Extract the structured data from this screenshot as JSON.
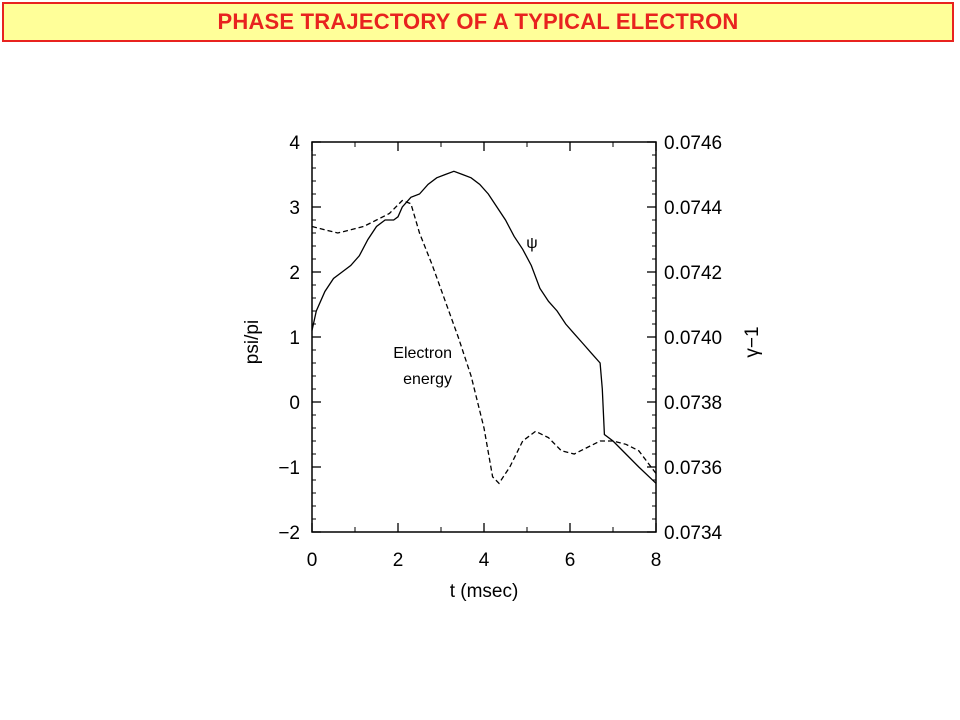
{
  "header": {
    "title": "PHASE TRAJECTORY OF A TYPICAL ELECTRON"
  },
  "colors": {
    "title_text": "#e8231f",
    "title_border": "#e8231f",
    "title_background": "#ffff99"
  },
  "chart_data": {
    "type": "line",
    "xlabel": "t (msec)",
    "ylabel_left": "psi/pi",
    "ylabel_right": "γ−1",
    "xlim": [
      0,
      8
    ],
    "ylim_left": [
      -2,
      4
    ],
    "ylim_right": [
      0.0734,
      0.0746
    ],
    "x_ticks": [
      "0",
      "2",
      "4",
      "6",
      "8"
    ],
    "y_ticks_left": [
      "−2",
      "−1",
      "0",
      "1",
      "2",
      "3",
      "4"
    ],
    "y_ticks_right": [
      "0.0734",
      "0.0736",
      "0.0738",
      "0.0740",
      "0.0742",
      "0.0744",
      "0.0746"
    ],
    "grid": false,
    "annotations": {
      "psi_label": "ψ",
      "energy_label_line1": "Electron",
      "energy_label_line2": "energy"
    },
    "series": [
      {
        "axis": "left",
        "style": "solid",
        "points": [
          [
            0,
            1.1
          ],
          [
            0.1,
            1.4
          ],
          [
            0.3,
            1.7
          ],
          [
            0.5,
            1.9
          ],
          [
            0.7,
            2.0
          ],
          [
            0.9,
            2.1
          ],
          [
            1.1,
            2.25
          ],
          [
            1.3,
            2.5
          ],
          [
            1.5,
            2.7
          ],
          [
            1.7,
            2.8
          ],
          [
            1.9,
            2.8
          ],
          [
            2.0,
            2.85
          ],
          [
            2.1,
            3.0
          ],
          [
            2.3,
            3.15
          ],
          [
            2.5,
            3.2
          ],
          [
            2.7,
            3.35
          ],
          [
            2.9,
            3.45
          ],
          [
            3.1,
            3.5
          ],
          [
            3.3,
            3.55
          ],
          [
            3.5,
            3.5
          ],
          [
            3.7,
            3.45
          ],
          [
            3.9,
            3.35
          ],
          [
            4.1,
            3.2
          ],
          [
            4.3,
            3.0
          ],
          [
            4.5,
            2.8
          ],
          [
            4.7,
            2.55
          ],
          [
            4.9,
            2.35
          ],
          [
            5.1,
            2.1
          ],
          [
            5.3,
            1.75
          ],
          [
            5.5,
            1.55
          ],
          [
            5.7,
            1.4
          ],
          [
            5.9,
            1.2
          ],
          [
            6.1,
            1.05
          ],
          [
            6.3,
            0.9
          ],
          [
            6.5,
            0.75
          ],
          [
            6.7,
            0.6
          ],
          [
            6.75,
            0.2
          ],
          [
            6.8,
            -0.5
          ],
          [
            7.0,
            -0.6
          ],
          [
            7.3,
            -0.8
          ],
          [
            7.6,
            -1.0
          ],
          [
            8.0,
            -1.25
          ]
        ]
      },
      {
        "axis": "right",
        "style": "dashed",
        "points": [
          [
            0,
            0.07434
          ],
          [
            0.3,
            0.07433
          ],
          [
            0.6,
            0.07432
          ],
          [
            0.9,
            0.07433
          ],
          [
            1.2,
            0.07434
          ],
          [
            1.5,
            0.07436
          ],
          [
            1.8,
            0.07438
          ],
          [
            2.1,
            0.07442
          ],
          [
            2.3,
            0.07441
          ],
          [
            2.5,
            0.07432
          ],
          [
            2.8,
            0.07422
          ],
          [
            3.1,
            0.07411
          ],
          [
            3.4,
            0.074
          ],
          [
            3.7,
            0.07388
          ],
          [
            4.0,
            0.07372
          ],
          [
            4.2,
            0.07357
          ],
          [
            4.35,
            0.07355
          ],
          [
            4.6,
            0.0736
          ],
          [
            4.9,
            0.07368
          ],
          [
            5.2,
            0.07371
          ],
          [
            5.5,
            0.07369
          ],
          [
            5.8,
            0.07365
          ],
          [
            6.1,
            0.07364
          ],
          [
            6.4,
            0.07366
          ],
          [
            6.7,
            0.07368
          ],
          [
            7.0,
            0.07368
          ],
          [
            7.3,
            0.07367
          ],
          [
            7.6,
            0.07365
          ],
          [
            8.0,
            0.07358
          ]
        ]
      }
    ]
  }
}
